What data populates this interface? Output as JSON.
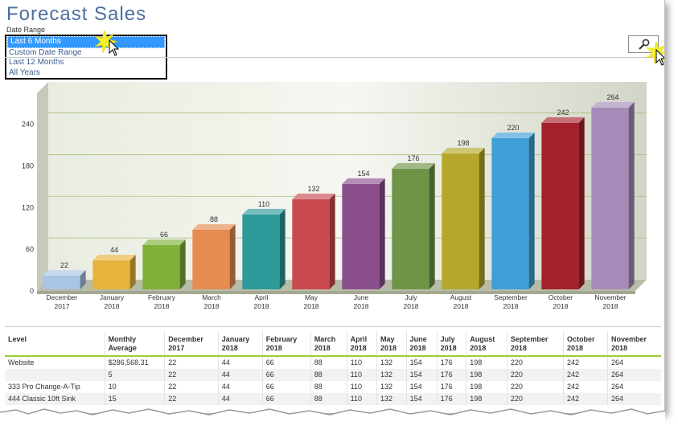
{
  "page": {
    "title": "Forecast Sales"
  },
  "date_range": {
    "label": "Date Range",
    "options": [
      "Last 6 Months",
      "Custom Date Range",
      "Last 12 Months",
      "All Years"
    ],
    "selected_index": 0
  },
  "chart_data": {
    "type": "bar",
    "categories": [
      [
        "December",
        "2017"
      ],
      [
        "January",
        "2018"
      ],
      [
        "February",
        "2018"
      ],
      [
        "March",
        "2018"
      ],
      [
        "April",
        "2018"
      ],
      [
        "May",
        "2018"
      ],
      [
        "June",
        "2018"
      ],
      [
        "July",
        "2018"
      ],
      [
        "August",
        "2018"
      ],
      [
        "September",
        "2018"
      ],
      [
        "October",
        "2018"
      ],
      [
        "November",
        "2018"
      ]
    ],
    "values": [
      22,
      44,
      66,
      88,
      110,
      132,
      154,
      176,
      198,
      220,
      242,
      264
    ],
    "ylim": [
      0,
      280
    ],
    "yticks": [
      0,
      60,
      120,
      180,
      240
    ],
    "colors": [
      "#a9c4e4",
      "#e6b43c",
      "#7fb03a",
      "#e58c50",
      "#2f9a9a",
      "#c9494f",
      "#8b4f8e",
      "#6f9448",
      "#b5a72a",
      "#3f9fd6",
      "#a4202a",
      "#a68bb8"
    ],
    "grid": true,
    "title": "",
    "xlabel": "",
    "ylabel": ""
  },
  "table": {
    "headers": [
      [
        "Level",
        ""
      ],
      [
        "Monthly",
        "Average"
      ],
      [
        "December",
        "2017"
      ],
      [
        "January",
        "2018"
      ],
      [
        "February",
        "2018"
      ],
      [
        "March",
        "2018"
      ],
      [
        "April",
        "2018"
      ],
      [
        "May",
        "2018"
      ],
      [
        "June",
        "2018"
      ],
      [
        "July",
        "2018"
      ],
      [
        "August",
        "2018"
      ],
      [
        "September",
        "2018"
      ],
      [
        "October",
        "2018"
      ],
      [
        "November",
        "2018"
      ]
    ],
    "rows": [
      [
        "Website",
        "$286,568.31",
        "22",
        "44",
        "66",
        "88",
        "110",
        "132",
        "154",
        "176",
        "198",
        "220",
        "242",
        "264"
      ],
      [
        "",
        "5",
        "22",
        "44",
        "66",
        "88",
        "110",
        "132",
        "154",
        "176",
        "198",
        "220",
        "242",
        "264"
      ],
      [
        "333 Pro Change-A-Tip",
        "10",
        "22",
        "44",
        "66",
        "88",
        "110",
        "132",
        "154",
        "176",
        "198",
        "220",
        "242",
        "264"
      ],
      [
        "444 Classic 10ft Sink",
        "15",
        "22",
        "44",
        "66",
        "88",
        "110",
        "132",
        "154",
        "176",
        "198",
        "220",
        "242",
        "264"
      ]
    ]
  }
}
